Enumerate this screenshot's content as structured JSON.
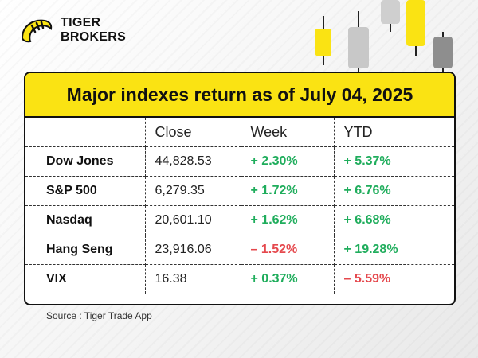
{
  "brand": {
    "line1": "TIGER",
    "line2": "BROKERS"
  },
  "title": "Major indexes return as of July 04, 2025",
  "table": {
    "headers": [
      "",
      "Close",
      "Week",
      "YTD"
    ],
    "rows": [
      {
        "name": "Dow Jones",
        "close": "44,828.53",
        "week": "+ 2.30%",
        "week_dir": "pos",
        "ytd": "+ 5.37%",
        "ytd_dir": "pos"
      },
      {
        "name": "S&P 500",
        "close": "6,279.35",
        "week": "+ 1.72%",
        "week_dir": "pos",
        "ytd": "+ 6.76%",
        "ytd_dir": "pos"
      },
      {
        "name": "Nasdaq",
        "close": "20,601.10",
        "week": "+ 1.62%",
        "week_dir": "pos",
        "ytd": "+ 6.68%",
        "ytd_dir": "pos"
      },
      {
        "name": "Hang Seng",
        "close": "23,916.06",
        "week": "– 1.52%",
        "week_dir": "neg",
        "ytd": "+ 19.28%",
        "ytd_dir": "pos"
      },
      {
        "name": "VIX",
        "close": "16.38",
        "week": "+ 0.37%",
        "week_dir": "pos",
        "ytd": "– 5.59%",
        "ytd_dir": "neg"
      }
    ]
  },
  "source": "Source : Tiger Trade App",
  "colors": {
    "accent": "#fae313",
    "positive": "#1fad5c",
    "negative": "#e5484d"
  },
  "icons": [
    "tiger-logo-icon",
    "candlestick-decoration-icon"
  ]
}
